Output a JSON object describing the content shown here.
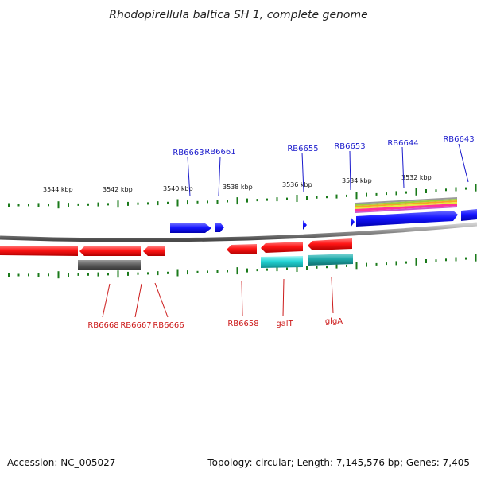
{
  "title": "Rhodopirellula baltica SH 1, complete genome",
  "footer": {
    "accession": "Accession: NC_005027",
    "summary": "Topology: circular; Length: 7,145,576 bp; Genes: 7,405"
  },
  "scale_ticks": [
    "3544 kbp",
    "3542 kbp",
    "3540 kbp",
    "3538 kbp",
    "3536 kbp",
    "3534 kbp",
    "3532 kbp"
  ],
  "genes_forward": [
    {
      "name": "RB6663",
      "color": "#1a1aff"
    },
    {
      "name": "RB6661",
      "color": "#1a1aff"
    },
    {
      "name": "RB6655",
      "color": "#1a1aff"
    },
    {
      "name": "RB6653",
      "color": "#1a1aff"
    },
    {
      "name": "RB6644",
      "color": "#1a1aff"
    },
    {
      "name": "RB6643",
      "color": "#1a1aff"
    }
  ],
  "genes_reverse": [
    {
      "name": "RB6668",
      "color": "#ff1a1a"
    },
    {
      "name": "RB6667",
      "color": "#ff1a1a"
    },
    {
      "name": "RB6666",
      "color": "#ff1a1a"
    },
    {
      "name": "RB6658",
      "color": "#ff1a1a"
    },
    {
      "name": "galT",
      "color": "#ff1a1a"
    },
    {
      "name": "glgA",
      "color": "#ff1a1a"
    }
  ],
  "colors": {
    "forward_gene": "#1a1aff",
    "reverse_gene": "#ff1a1a",
    "forward_label": "#1a1acc",
    "reverse_label": "#cc1a1a",
    "tick": "#1a7a1a",
    "backbone": "#8a8a8a",
    "rrna_feature": "#666666",
    "cds_feature": "#22d4d4"
  }
}
